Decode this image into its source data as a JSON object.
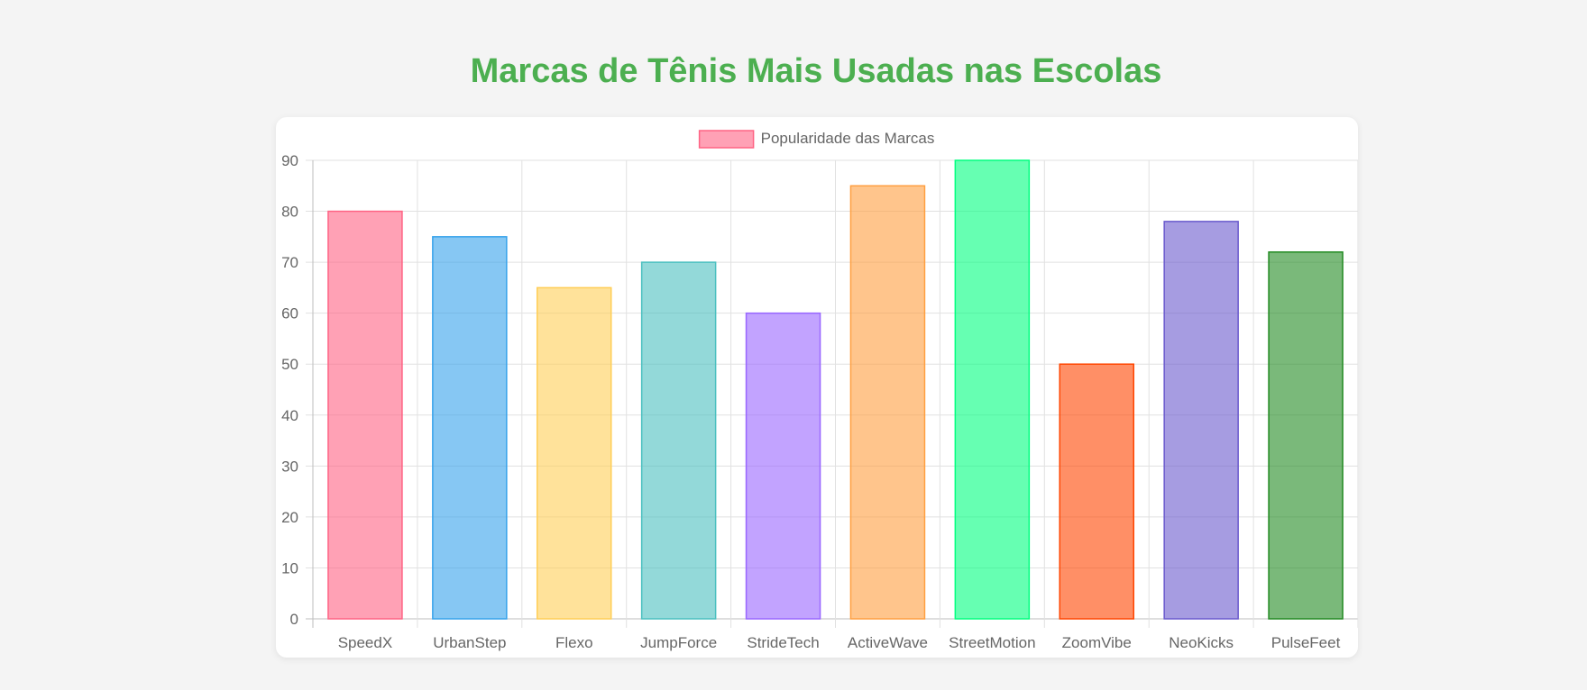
{
  "page": {
    "title": "Marcas de Tênis Mais Usadas nas Escolas"
  },
  "chart_data": {
    "type": "bar",
    "title": "Marcas de Tênis Mais Usadas nas Escolas",
    "categories": [
      "SpeedX",
      "UrbanStep",
      "Flexo",
      "JumpForce",
      "StrideTech",
      "ActiveWave",
      "StreetMotion",
      "ZoomVibe",
      "NeoKicks",
      "PulseFeet"
    ],
    "series": [
      {
        "name": "Popularidade das Marcas",
        "values": [
          80,
          75,
          65,
          70,
          60,
          85,
          90,
          50,
          78,
          72
        ]
      }
    ],
    "ylim": [
      0,
      90
    ],
    "yticks": [
      0,
      10,
      20,
      30,
      40,
      50,
      60,
      70,
      80,
      90
    ],
    "grid": true,
    "legend_position": "top-center",
    "colors": {
      "fills": [
        "#ff6384",
        "#36a2eb",
        "#ffce56",
        "#4bc0c0",
        "#9966ff",
        "#ff9f40",
        "#00ff7f",
        "#ff4500",
        "#6a5acd",
        "#228b22"
      ],
      "legend_fill": "#ffa1b5",
      "legend_stroke": "#ff6384",
      "title": "#4caf50"
    }
  }
}
